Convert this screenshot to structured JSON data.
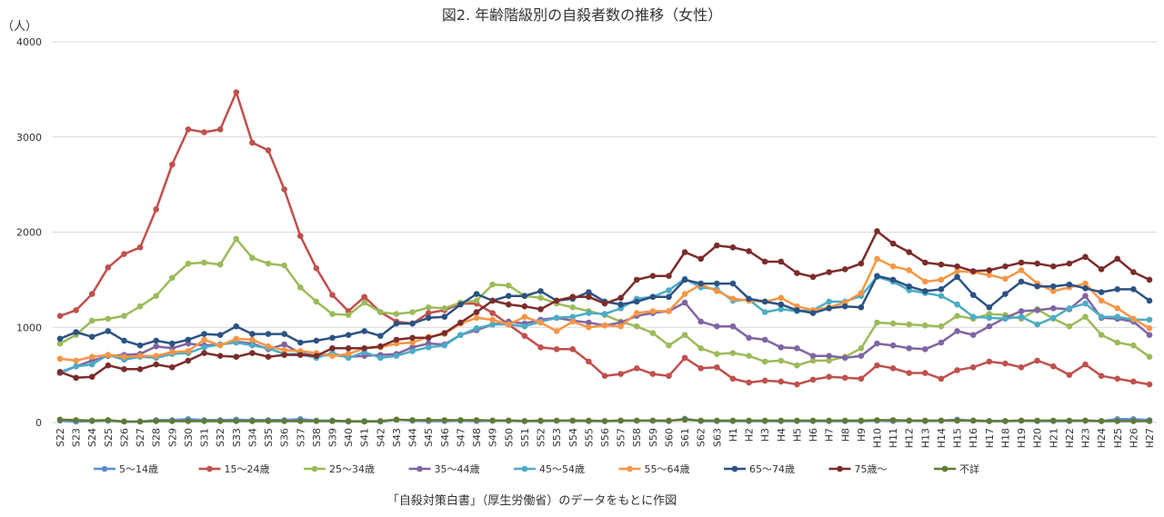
{
  "chart_data": {
    "type": "line",
    "title": "図2. 年齢階級別の自殺者数の推移（女性）",
    "ylabel": "（人）",
    "xlabel": "",
    "source_note": "「自殺対策白書」（厚生労働省）のデータをもとに作図",
    "ylim": [
      0,
      4000
    ],
    "yticks": [
      0,
      1000,
      2000,
      3000,
      4000
    ],
    "grid": true,
    "legend_position": "bottom",
    "categories": [
      "S22",
      "S23",
      "S24",
      "S25",
      "S26",
      "S27",
      "S28",
      "S29",
      "S30",
      "S31",
      "S32",
      "S33",
      "S34",
      "S35",
      "S36",
      "S37",
      "S38",
      "S39",
      "S40",
      "S41",
      "S42",
      "S43",
      "S44",
      "S45",
      "S46",
      "S47",
      "S48",
      "S49",
      "S50",
      "S51",
      "S52",
      "S53",
      "S54",
      "S55",
      "S56",
      "S57",
      "S58",
      "S59",
      "S60",
      "S61",
      "S62",
      "S63",
      "H1",
      "H2",
      "H3",
      "H4",
      "H5",
      "H6",
      "H7",
      "H8",
      "H9",
      "H10",
      "H11",
      "H12",
      "H13",
      "H14",
      "H15",
      "H16",
      "H17",
      "H18",
      "H19",
      "H20",
      "H21",
      "H22",
      "H23",
      "H24",
      "H25",
      "H26",
      "H27"
    ],
    "series": [
      {
        "name": "5〜14歳",
        "color": "#5b8fd0",
        "values": [
          20,
          10,
          15,
          20,
          10,
          10,
          25,
          25,
          35,
          25,
          25,
          30,
          25,
          25,
          25,
          35,
          20,
          20,
          10,
          15,
          10,
          30,
          20,
          15,
          15,
          20,
          15,
          20,
          20,
          15,
          15,
          20,
          20,
          15,
          15,
          20,
          20,
          20,
          15,
          40,
          15,
          15,
          15,
          15,
          15,
          15,
          15,
          15,
          15,
          15,
          15,
          20,
          15,
          20,
          15,
          20,
          30,
          20,
          15,
          15,
          20,
          15,
          15,
          15,
          20,
          15,
          35,
          35,
          25
        ]
      },
      {
        "name": "15〜24歳",
        "color": "#c0504d",
        "values": [
          1120,
          1180,
          1350,
          1630,
          1770,
          1840,
          2240,
          2710,
          3080,
          3050,
          3080,
          3470,
          2940,
          2860,
          2450,
          1960,
          1620,
          1340,
          1170,
          1320,
          1160,
          1060,
          1040,
          1150,
          1180,
          1250,
          1250,
          1150,
          1030,
          910,
          790,
          770,
          770,
          640,
          490,
          510,
          570,
          510,
          490,
          680,
          570,
          580,
          460,
          420,
          440,
          430,
          400,
          450,
          480,
          470,
          460,
          600,
          570,
          520,
          520,
          460,
          550,
          580,
          640,
          620,
          580,
          650,
          590,
          500,
          610,
          490,
          460,
          430,
          400
        ]
      },
      {
        "name": "25〜34歳",
        "color": "#9bbb59",
        "values": [
          830,
          920,
          1070,
          1090,
          1120,
          1220,
          1330,
          1520,
          1670,
          1680,
          1660,
          1930,
          1730,
          1670,
          1650,
          1420,
          1270,
          1140,
          1130,
          1260,
          1160,
          1140,
          1160,
          1210,
          1200,
          1260,
          1280,
          1450,
          1440,
          1330,
          1310,
          1250,
          1210,
          1170,
          1130,
          1060,
          1010,
          940,
          810,
          920,
          780,
          720,
          730,
          700,
          640,
          650,
          600,
          650,
          650,
          690,
          780,
          1050,
          1040,
          1030,
          1020,
          1010,
          1120,
          1090,
          1140,
          1130,
          1090,
          1190,
          1090,
          1010,
          1110,
          920,
          840,
          810,
          690
        ]
      },
      {
        "name": "35〜44歳",
        "color": "#8064a2",
        "values": [
          520,
          590,
          650,
          700,
          710,
          720,
          800,
          780,
          830,
          810,
          820,
          850,
          830,
          770,
          820,
          730,
          700,
          710,
          690,
          700,
          710,
          720,
          790,
          830,
          820,
          920,
          970,
          1030,
          1060,
          1040,
          1080,
          1100,
          1070,
          1050,
          1020,
          1050,
          1120,
          1150,
          1170,
          1260,
          1060,
          1010,
          1010,
          890,
          870,
          790,
          780,
          700,
          700,
          680,
          700,
          830,
          810,
          780,
          770,
          840,
          960,
          920,
          1010,
          1100,
          1170,
          1180,
          1200,
          1190,
          1330,
          1100,
          1090,
          1060,
          920
        ]
      },
      {
        "name": "45〜54歳",
        "color": "#4bacc6",
        "values": [
          530,
          590,
          610,
          710,
          660,
          690,
          680,
          720,
          730,
          790,
          820,
          840,
          810,
          780,
          720,
          720,
          680,
          730,
          680,
          740,
          680,
          700,
          750,
          790,
          810,
          920,
          990,
          1030,
          1030,
          1010,
          1060,
          1100,
          1110,
          1150,
          1140,
          1200,
          1300,
          1320,
          1390,
          1510,
          1420,
          1400,
          1280,
          1290,
          1160,
          1190,
          1170,
          1180,
          1270,
          1270,
          1330,
          1530,
          1480,
          1390,
          1360,
          1330,
          1240,
          1110,
          1100,
          1090,
          1110,
          1030,
          1100,
          1200,
          1250,
          1110,
          1110,
          1080,
          1080
        ]
      },
      {
        "name": "55〜64歳",
        "color": "#f79646",
        "values": [
          670,
          650,
          690,
          710,
          690,
          700,
          700,
          740,
          750,
          870,
          810,
          880,
          870,
          800,
          760,
          750,
          730,
          700,
          720,
          780,
          790,
          830,
          840,
          900,
          930,
          1040,
          1100,
          1080,
          1030,
          1110,
          1050,
          960,
          1060,
          1000,
          1020,
          1010,
          1150,
          1170,
          1170,
          1350,
          1450,
          1380,
          1300,
          1280,
          1270,
          1310,
          1220,
          1180,
          1210,
          1260,
          1360,
          1720,
          1640,
          1600,
          1480,
          1500,
          1590,
          1580,
          1550,
          1510,
          1600,
          1460,
          1380,
          1420,
          1460,
          1280,
          1200,
          1090,
          990
        ]
      },
      {
        "name": "65〜74歳",
        "color": "#2c5282",
        "values": [
          880,
          950,
          900,
          960,
          860,
          810,
          860,
          830,
          870,
          930,
          920,
          1010,
          930,
          930,
          930,
          840,
          860,
          890,
          920,
          960,
          910,
          1040,
          1040,
          1100,
          1110,
          1240,
          1350,
          1280,
          1330,
          1330,
          1380,
          1280,
          1300,
          1370,
          1270,
          1240,
          1270,
          1320,
          1320,
          1500,
          1460,
          1460,
          1460,
          1300,
          1270,
          1240,
          1180,
          1150,
          1200,
          1220,
          1210,
          1540,
          1500,
          1430,
          1380,
          1400,
          1530,
          1340,
          1210,
          1350,
          1480,
          1430,
          1430,
          1450,
          1410,
          1370,
          1400,
          1400,
          1280
        ]
      },
      {
        "name": "75歳〜",
        "color": "#7b2c2a",
        "values": [
          530,
          470,
          480,
          600,
          560,
          560,
          610,
          580,
          650,
          730,
          700,
          690,
          730,
          690,
          710,
          710,
          700,
          780,
          780,
          780,
          800,
          870,
          890,
          890,
          940,
          1050,
          1160,
          1280,
          1240,
          1220,
          1190,
          1280,
          1320,
          1320,
          1250,
          1310,
          1500,
          1540,
          1540,
          1790,
          1720,
          1860,
          1840,
          1800,
          1690,
          1690,
          1570,
          1530,
          1580,
          1610,
          1670,
          2010,
          1880,
          1790,
          1680,
          1660,
          1640,
          1590,
          1600,
          1640,
          1680,
          1670,
          1640,
          1670,
          1740,
          1610,
          1720,
          1580,
          1500
        ]
      },
      {
        "name": "不詳",
        "color": "#5f7a35",
        "values": [
          30,
          25,
          20,
          25,
          10,
          10,
          15,
          15,
          15,
          15,
          15,
          15,
          15,
          15,
          15,
          15,
          15,
          15,
          15,
          10,
          15,
          30,
          25,
          25,
          25,
          25,
          25,
          20,
          20,
          15,
          20,
          20,
          20,
          20,
          15,
          20,
          20,
          20,
          20,
          30,
          20,
          20,
          20,
          20,
          20,
          20,
          20,
          20,
          20,
          20,
          20,
          25,
          25,
          20,
          20,
          20,
          20,
          20,
          15,
          15,
          20,
          20,
          20,
          20,
          20,
          15,
          15,
          15,
          15
        ]
      }
    ]
  }
}
